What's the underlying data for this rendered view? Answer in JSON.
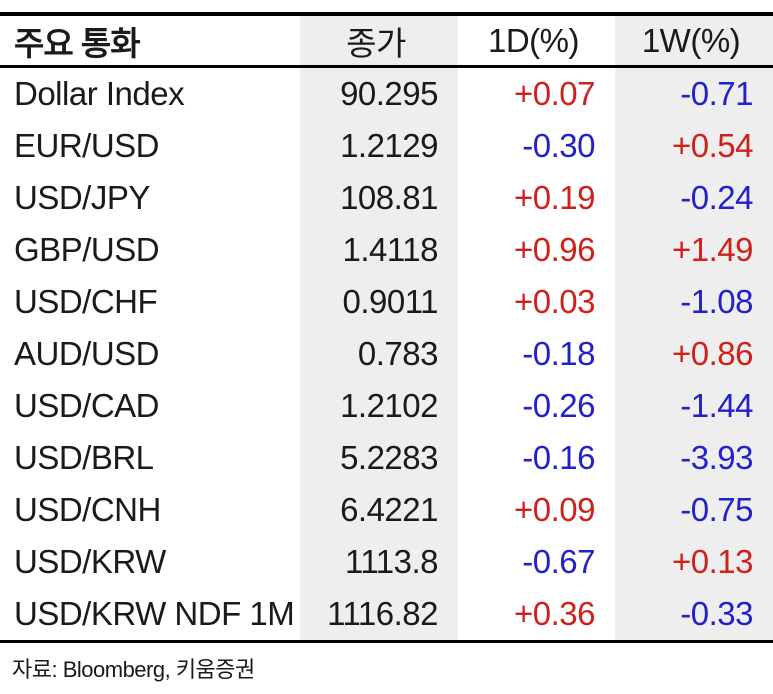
{
  "table": {
    "header": {
      "name": "주요 통화",
      "close": "종가",
      "d1": "1D(%)",
      "w1": "1W(%)"
    },
    "rows": [
      {
        "name": "Dollar Index",
        "close": "90.295",
        "d1": "+0.07",
        "w1": "-0.71"
      },
      {
        "name": "EUR/USD",
        "close": "1.2129",
        "d1": "-0.30",
        "w1": "+0.54"
      },
      {
        "name": "USD/JPY",
        "close": "108.81",
        "d1": "+0.19",
        "w1": "-0.24"
      },
      {
        "name": "GBP/USD",
        "close": "1.4118",
        "d1": "+0.96",
        "w1": "+1.49"
      },
      {
        "name": "USD/CHF",
        "close": "0.9011",
        "d1": "+0.03",
        "w1": "-1.08"
      },
      {
        "name": "AUD/USD",
        "close": "0.783",
        "d1": "-0.18",
        "w1": "+0.86"
      },
      {
        "name": "USD/CAD",
        "close": "1.2102",
        "d1": "-0.26",
        "w1": "-1.44"
      },
      {
        "name": "USD/BRL",
        "close": "5.2283",
        "d1": "-0.16",
        "w1": "-3.93"
      },
      {
        "name": "USD/CNH",
        "close": "6.4221",
        "d1": "+0.09",
        "w1": "-0.75"
      },
      {
        "name": "USD/KRW",
        "close": "1113.8",
        "d1": "-0.67",
        "w1": "+0.13"
      },
      {
        "name": "USD/KRW NDF 1M",
        "close": "1116.82",
        "d1": "+0.36",
        "w1": "-0.33"
      }
    ]
  },
  "footer": {
    "source": "자료: Bloomberg,  키움증권"
  },
  "colors": {
    "positive": "#d0201a",
    "negative": "#2121cc",
    "column_band": "#efeeee",
    "text": "#1a1a1a",
    "border": "#000000"
  }
}
